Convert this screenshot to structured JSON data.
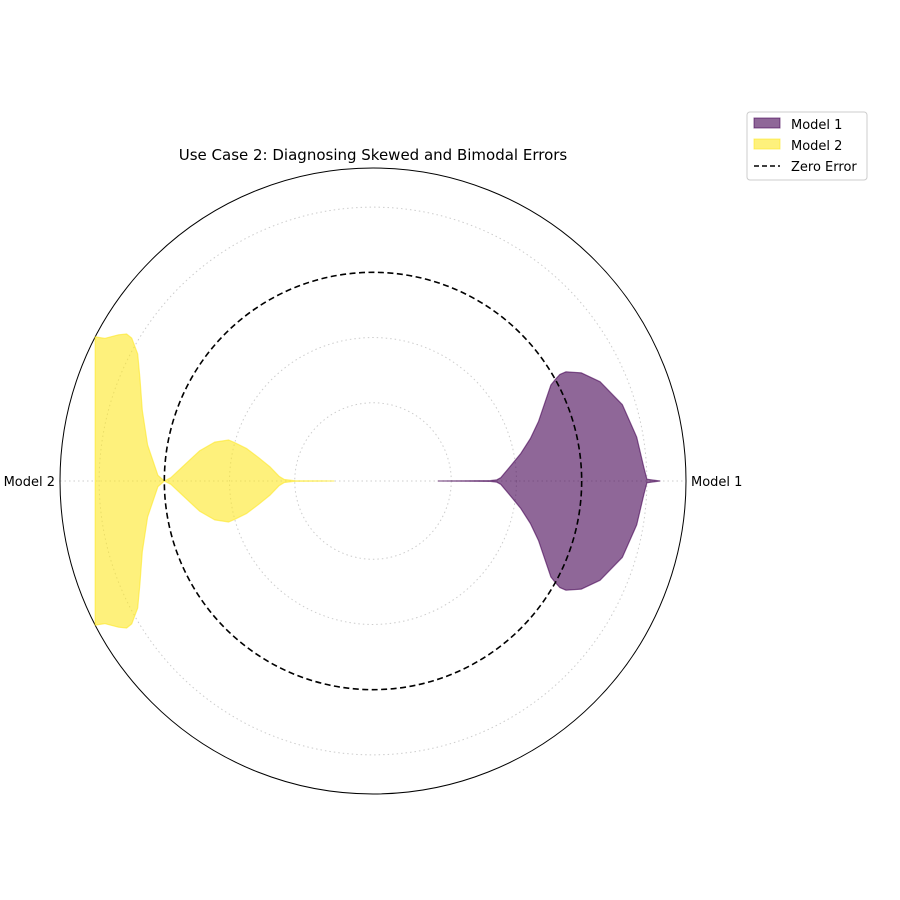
{
  "chart_data": {
    "type": "polar-violin",
    "title": "Use Case 2: Diagnosing Skewed and Bimodal Errors",
    "radial_zero_error": 0,
    "radial_range": [
      -1.6,
      0.8
    ],
    "radial_grid_values": [
      -1.0,
      -0.5,
      0.5
    ],
    "grid": true,
    "legend_position": "upper-right",
    "legend_entries": [
      "Model 1",
      "Model 2",
      "Zero Error"
    ],
    "categories": [
      "Model 1",
      "Model 2"
    ],
    "series": [
      {
        "name": "Model 1",
        "angle_deg": 0,
        "distribution": "right-skewed",
        "color": "#440154",
        "profile": [
          [
            -1.1,
            0.0
          ],
          [
            -0.9,
            0.005
          ],
          [
            -0.7,
            0.01
          ],
          [
            -0.65,
            0.03
          ],
          [
            -0.62,
            0.08
          ],
          [
            -0.55,
            0.3
          ],
          [
            -0.45,
            0.55
          ],
          [
            -0.35,
            0.8
          ],
          [
            -0.25,
            1.05
          ],
          [
            -0.15,
            1.3
          ],
          [
            -0.05,
            1.5
          ],
          [
            0.0,
            1.54
          ],
          [
            0.05,
            1.57
          ],
          [
            0.1,
            1.56
          ],
          [
            0.2,
            1.45
          ],
          [
            0.3,
            1.25
          ],
          [
            0.4,
            0.9
          ],
          [
            0.45,
            0.5
          ],
          [
            0.48,
            0.15
          ],
          [
            0.5,
            0.02
          ],
          [
            0.6,
            0.0
          ]
        ]
      },
      {
        "name": "Model 2",
        "angle_deg": 180,
        "distribution": "bimodal",
        "color": "#fde725",
        "profile": [
          [
            -1.3,
            0.0
          ],
          [
            -1.2,
            0.003
          ],
          [
            -1.0,
            0.01
          ],
          [
            -0.92,
            0.05
          ],
          [
            -0.88,
            0.15
          ],
          [
            -0.8,
            0.42
          ],
          [
            -0.7,
            0.62
          ],
          [
            -0.6,
            0.76
          ],
          [
            -0.5,
            0.82
          ],
          [
            -0.45,
            0.84
          ],
          [
            -0.35,
            0.73
          ],
          [
            -0.25,
            0.52
          ],
          [
            -0.15,
            0.26
          ],
          [
            -0.05,
            0.05
          ],
          [
            0.0,
            0.0
          ],
          [
            0.05,
            0.08
          ],
          [
            0.15,
            0.48
          ],
          [
            0.25,
            0.9
          ],
          [
            0.35,
            1.25
          ],
          [
            0.45,
            1.5
          ],
          [
            0.55,
            1.62
          ],
          [
            0.6,
            1.63
          ],
          [
            0.65,
            1.58
          ],
          [
            0.73,
            1.48
          ],
          [
            0.8,
            1.45
          ]
        ]
      }
    ]
  }
}
